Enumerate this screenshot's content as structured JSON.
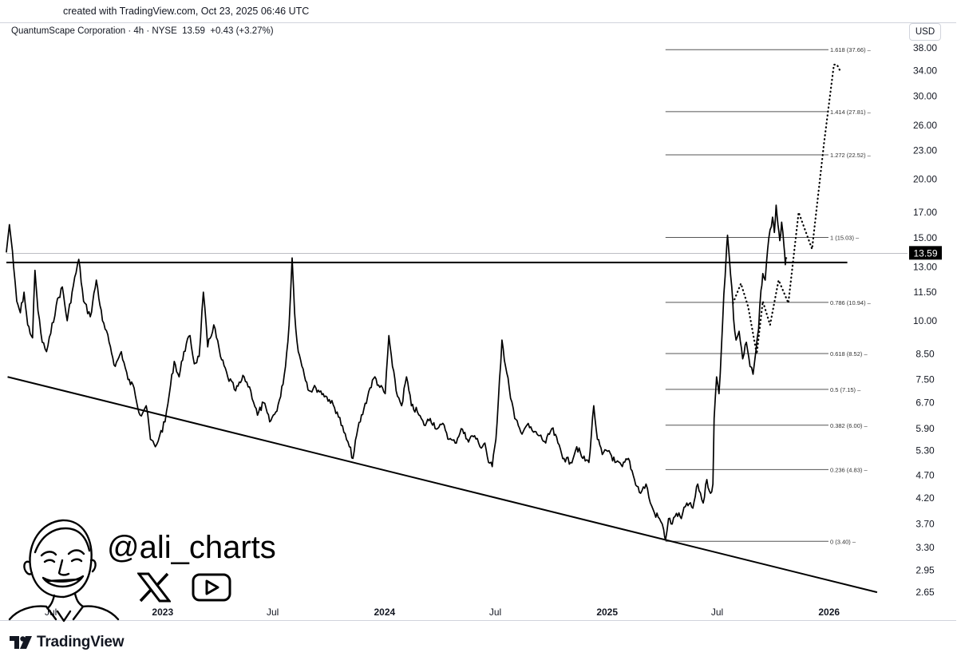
{
  "header": {
    "created_text": "created with TradingView.com, Oct 23, 2025 06:46 UTC"
  },
  "legend": {
    "symbol": "QuantumScape Corporation · 4h · NYSE",
    "last": "13.59",
    "change": "+0.43 (+3.27%)"
  },
  "currency_button": "USD",
  "branding": {
    "logo_text": "TradingView",
    "handle": "@ali_charts",
    "icons": [
      "avatar-caricature",
      "x-logo-icon",
      "youtube-play-icon"
    ]
  },
  "chart_data": {
    "type": "line",
    "title": "",
    "y_scale": "log",
    "ylim": [
      2.55,
      39.5
    ],
    "y_ticks": [
      "38.00",
      "34.00",
      "30.00",
      "26.00",
      "23.00",
      "20.00",
      "17.00",
      "15.00",
      "13.00",
      "11.50",
      "10.00",
      "8.50",
      "7.50",
      "6.70",
      "5.90",
      "5.30",
      "4.70",
      "4.20",
      "3.70",
      "3.30",
      "2.95",
      "2.65"
    ],
    "x_ticks": [
      "Jul",
      "2023",
      "Jul",
      "2024",
      "Jul",
      "2025",
      "Jul",
      "2026"
    ],
    "x_tick_dates": [
      "2022-07-01",
      "2023-01-01",
      "2023-07-01",
      "2024-01-01",
      "2024-07-01",
      "2025-01-01",
      "2025-07-01",
      "2026-01-01"
    ],
    "xlim": [
      "2022-04-19",
      "2026-05-10"
    ],
    "current_price": {
      "value": 13.59,
      "label": "13.59",
      "color": "#000000"
    },
    "fib_levels": [
      {
        "ratio": "1.618",
        "value": 37.66,
        "label": "1.618 (37.66)"
      },
      {
        "ratio": "1.414",
        "value": 27.81,
        "label": "1.414 (27.81)"
      },
      {
        "ratio": "1.272",
        "value": 22.52,
        "label": "1.272 (22.52)"
      },
      {
        "ratio": "1",
        "value": 15.03,
        "label": "1 (15.03)"
      },
      {
        "ratio": "0.786",
        "value": 10.94,
        "label": "0.786 (10.94)"
      },
      {
        "ratio": "0.618",
        "value": 8.52,
        "label": "0.618 (8.52)"
      },
      {
        "ratio": "0.5",
        "value": 7.15,
        "label": "0.5 (7.15)"
      },
      {
        "ratio": "0.382",
        "value": 6.0,
        "label": "0.382 (6.00)"
      },
      {
        "ratio": "0.236",
        "value": 4.83,
        "label": "0.236 (4.83)"
      },
      {
        "ratio": "0",
        "value": 3.4,
        "label": "0 (3.40)"
      }
    ],
    "fib_start_date": "2025-04-07",
    "fib_end_date": "2025-12-31",
    "resistance_line": {
      "value": 13.3,
      "from": "2022-04-19",
      "to": "2026-01-31"
    },
    "support_trendline": {
      "from": [
        "2022-04-21",
        7.6
      ],
      "to": [
        "2026-03-21",
        2.65
      ]
    },
    "series": [
      {
        "style": "solid",
        "points": [
          [
            "2022-04-19",
            14.0
          ],
          [
            "2022-04-24",
            16.0
          ],
          [
            "2022-04-27",
            14.8
          ],
          [
            "2022-05-01",
            13.0
          ],
          [
            "2022-05-06",
            11.0
          ],
          [
            "2022-05-12",
            10.4
          ],
          [
            "2022-05-18",
            11.5
          ],
          [
            "2022-05-24",
            9.8
          ],
          [
            "2022-06-01",
            9.2
          ],
          [
            "2022-06-05",
            12.8
          ],
          [
            "2022-06-10",
            10.5
          ],
          [
            "2022-06-17",
            9.0
          ],
          [
            "2022-06-24",
            8.6
          ],
          [
            "2022-07-01",
            9.4
          ],
          [
            "2022-07-10",
            10.8
          ],
          [
            "2022-07-20",
            11.8
          ],
          [
            "2022-07-28",
            10.0
          ],
          [
            "2022-08-05",
            11.5
          ],
          [
            "2022-08-16",
            13.5
          ],
          [
            "2022-08-24",
            11.0
          ],
          [
            "2022-09-04",
            10.2
          ],
          [
            "2022-09-14",
            12.2
          ],
          [
            "2022-09-24",
            10.0
          ],
          [
            "2022-10-05",
            9.0
          ],
          [
            "2022-10-15",
            8.0
          ],
          [
            "2022-10-25",
            8.6
          ],
          [
            "2022-11-05",
            7.5
          ],
          [
            "2022-11-15",
            7.2
          ],
          [
            "2022-11-25",
            6.3
          ],
          [
            "2022-12-05",
            6.6
          ],
          [
            "2022-12-12",
            5.6
          ],
          [
            "2022-12-20",
            5.4
          ],
          [
            "2022-12-27",
            5.7
          ],
          [
            "2023-01-05",
            6.1
          ],
          [
            "2023-01-12",
            7.0
          ],
          [
            "2023-01-20",
            8.2
          ],
          [
            "2023-01-28",
            7.6
          ],
          [
            "2023-02-05",
            8.6
          ],
          [
            "2023-02-15",
            9.3
          ],
          [
            "2023-02-22",
            8.1
          ],
          [
            "2023-03-02",
            8.4
          ],
          [
            "2023-03-09",
            11.5
          ],
          [
            "2023-03-16",
            8.8
          ],
          [
            "2023-03-26",
            9.8
          ],
          [
            "2023-04-06",
            8.4
          ],
          [
            "2023-04-18",
            7.6
          ],
          [
            "2023-05-01",
            7.1
          ],
          [
            "2023-05-15",
            7.6
          ],
          [
            "2023-05-26",
            7.1
          ],
          [
            "2023-06-06",
            6.3
          ],
          [
            "2023-06-16",
            6.7
          ],
          [
            "2023-06-26",
            6.1
          ],
          [
            "2023-07-06",
            6.4
          ],
          [
            "2023-07-14",
            6.9
          ],
          [
            "2023-07-22",
            8.0
          ],
          [
            "2023-07-28",
            9.8
          ],
          [
            "2023-08-02",
            13.6
          ],
          [
            "2023-08-06",
            10.4
          ],
          [
            "2023-08-12",
            8.6
          ],
          [
            "2023-08-20",
            7.9
          ],
          [
            "2023-08-30",
            7.1
          ],
          [
            "2023-09-10",
            7.2
          ],
          [
            "2023-09-22",
            7.0
          ],
          [
            "2023-10-02",
            6.8
          ],
          [
            "2023-10-15",
            6.4
          ],
          [
            "2023-10-26",
            5.8
          ],
          [
            "2023-11-04",
            5.4
          ],
          [
            "2023-11-10",
            5.1
          ],
          [
            "2023-11-18",
            5.9
          ],
          [
            "2023-11-28",
            6.5
          ],
          [
            "2023-12-08",
            7.2
          ],
          [
            "2023-12-16",
            7.6
          ],
          [
            "2023-12-22",
            7.3
          ],
          [
            "2024-01-02",
            7.0
          ],
          [
            "2024-01-08",
            9.3
          ],
          [
            "2024-01-14",
            8.0
          ],
          [
            "2024-01-20",
            7.1
          ],
          [
            "2024-01-29",
            6.6
          ],
          [
            "2024-02-06",
            7.6
          ],
          [
            "2024-02-14",
            6.6
          ],
          [
            "2024-02-24",
            6.4
          ],
          [
            "2024-03-06",
            6.0
          ],
          [
            "2024-03-16",
            6.2
          ],
          [
            "2024-03-28",
            5.9
          ],
          [
            "2024-04-08",
            6.0
          ],
          [
            "2024-04-16",
            5.6
          ],
          [
            "2024-04-26",
            5.5
          ],
          [
            "2024-05-06",
            5.9
          ],
          [
            "2024-05-16",
            5.6
          ],
          [
            "2024-05-28",
            5.7
          ],
          [
            "2024-06-06",
            5.4
          ],
          [
            "2024-06-14",
            5.5
          ],
          [
            "2024-06-20",
            5.0
          ],
          [
            "2024-06-26",
            4.9
          ],
          [
            "2024-07-02",
            5.6
          ],
          [
            "2024-07-08",
            7.5
          ],
          [
            "2024-07-12",
            9.1
          ],
          [
            "2024-07-18",
            8.0
          ],
          [
            "2024-07-24",
            7.2
          ],
          [
            "2024-08-02",
            6.2
          ],
          [
            "2024-08-12",
            5.8
          ],
          [
            "2024-08-22",
            6.0
          ],
          [
            "2024-09-02",
            5.8
          ],
          [
            "2024-09-12",
            5.7
          ],
          [
            "2024-09-22",
            5.5
          ],
          [
            "2024-10-02",
            5.9
          ],
          [
            "2024-10-12",
            5.5
          ],
          [
            "2024-10-22",
            5.1
          ],
          [
            "2024-11-02",
            5.0
          ],
          [
            "2024-11-12",
            5.4
          ],
          [
            "2024-11-22",
            5.1
          ],
          [
            "2024-12-02",
            5.0
          ],
          [
            "2024-12-10",
            6.6
          ],
          [
            "2024-12-16",
            5.6
          ],
          [
            "2024-12-24",
            5.2
          ],
          [
            "2025-01-04",
            5.3
          ],
          [
            "2025-01-14",
            5.0
          ],
          [
            "2025-01-26",
            4.9
          ],
          [
            "2025-02-05",
            5.1
          ],
          [
            "2025-02-15",
            4.6
          ],
          [
            "2025-02-25",
            4.3
          ],
          [
            "2025-03-06",
            4.5
          ],
          [
            "2025-03-13",
            4.1
          ],
          [
            "2025-03-20",
            3.9
          ],
          [
            "2025-03-28",
            3.8
          ],
          [
            "2025-04-04",
            3.6
          ],
          [
            "2025-04-07",
            3.42
          ],
          [
            "2025-04-12",
            3.8
          ],
          [
            "2025-04-18",
            3.7
          ],
          [
            "2025-04-25",
            3.9
          ],
          [
            "2025-05-03",
            3.8
          ],
          [
            "2025-05-12",
            4.1
          ],
          [
            "2025-05-22",
            4.0
          ],
          [
            "2025-05-30",
            4.5
          ],
          [
            "2025-06-08",
            4.1
          ],
          [
            "2025-06-14",
            4.6
          ],
          [
            "2025-06-20",
            4.3
          ],
          [
            "2025-06-24",
            4.5
          ],
          [
            "2025-06-26",
            6.2
          ],
          [
            "2025-06-30",
            7.6
          ],
          [
            "2025-07-04",
            7.0
          ],
          [
            "2025-07-08",
            8.8
          ],
          [
            "2025-07-12",
            11.4
          ],
          [
            "2025-07-16",
            13.9
          ],
          [
            "2025-07-18",
            15.2
          ],
          [
            "2025-07-21",
            13.6
          ],
          [
            "2025-07-25",
            11.8
          ],
          [
            "2025-07-28",
            10.1
          ],
          [
            "2025-08-01",
            9.1
          ],
          [
            "2025-08-06",
            9.5
          ],
          [
            "2025-08-12",
            8.3
          ],
          [
            "2025-08-18",
            9.0
          ],
          [
            "2025-08-24",
            8.0
          ],
          [
            "2025-08-29",
            7.7
          ],
          [
            "2025-09-03",
            8.7
          ],
          [
            "2025-09-07",
            9.6
          ],
          [
            "2025-09-11",
            11.6
          ],
          [
            "2025-09-14",
            12.6
          ],
          [
            "2025-09-18",
            12.2
          ],
          [
            "2025-09-22",
            14.2
          ],
          [
            "2025-09-26",
            15.6
          ],
          [
            "2025-09-30",
            16.6
          ],
          [
            "2025-10-03",
            15.4
          ],
          [
            "2025-10-06",
            17.6
          ],
          [
            "2025-10-09",
            16.0
          ],
          [
            "2025-10-12",
            14.8
          ],
          [
            "2025-10-15",
            16.2
          ],
          [
            "2025-10-19",
            14.3
          ],
          [
            "2025-10-21",
            13.16
          ],
          [
            "2025-10-23",
            13.59
          ]
        ]
      },
      {
        "style": "dotted",
        "points": [
          [
            "2025-07-27",
            10.9
          ],
          [
            "2025-08-09",
            12.0
          ],
          [
            "2025-08-21",
            10.7
          ],
          [
            "2025-09-04",
            8.5
          ],
          [
            "2025-09-14",
            11.0
          ],
          [
            "2025-09-26",
            9.8
          ],
          [
            "2025-10-10",
            12.2
          ],
          [
            "2025-10-26",
            10.9
          ],
          [
            "2025-11-12",
            17.0
          ],
          [
            "2025-12-04",
            14.2
          ],
          [
            "2025-12-24",
            24.0
          ],
          [
            "2026-01-09",
            35.0
          ],
          [
            "2026-01-14",
            35.0
          ],
          [
            "2026-01-19",
            34.0
          ]
        ]
      }
    ]
  }
}
